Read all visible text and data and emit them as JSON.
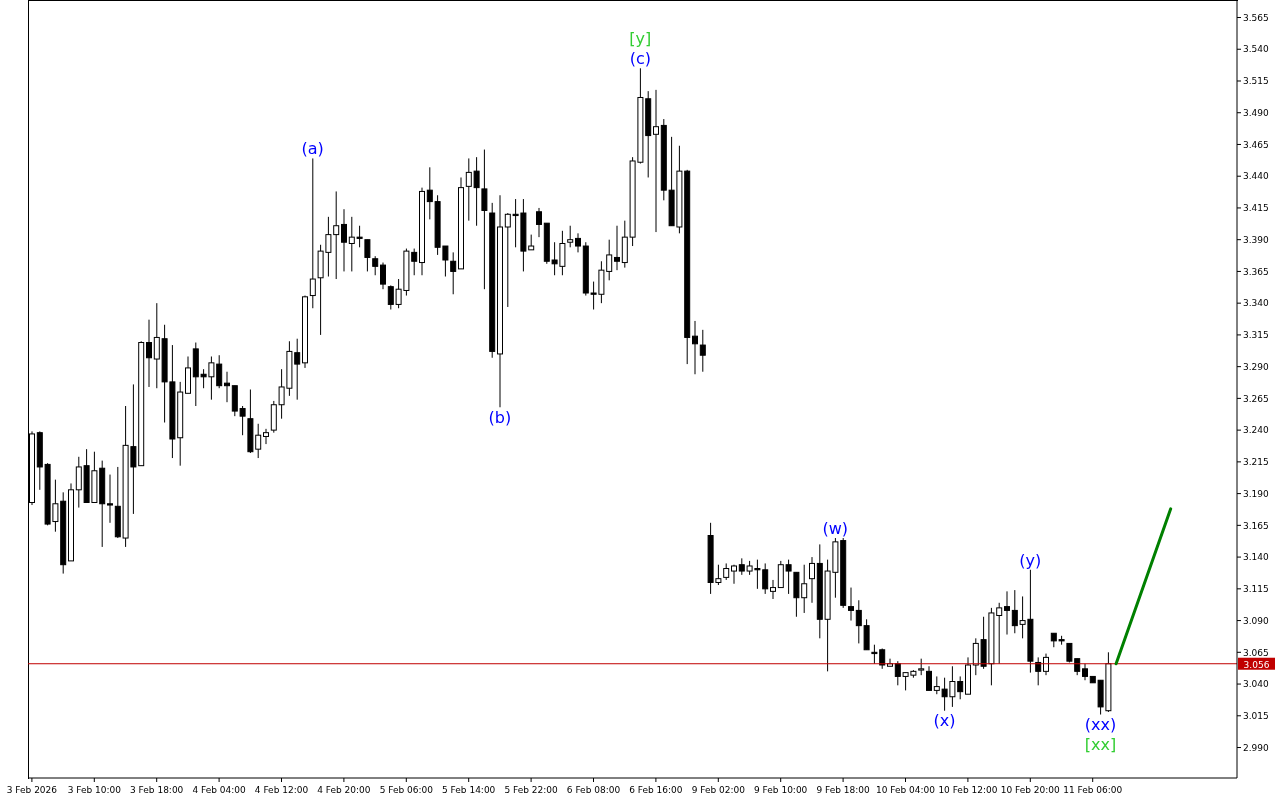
{
  "chart_data": {
    "type": "candlestick",
    "categories": [
      "3 Feb 2026",
      null,
      null,
      null,
      null,
      null,
      null,
      null,
      "3 Feb 10:00",
      null,
      null,
      null,
      null,
      null,
      null,
      null,
      "3 Feb 18:00",
      null,
      null,
      null,
      null,
      null,
      null,
      null,
      "4 Feb 04:00",
      null,
      null,
      null,
      null,
      null,
      null,
      null,
      "4 Feb 12:00",
      null,
      null,
      null,
      null,
      null,
      null,
      null,
      "4 Feb 20:00",
      null,
      null,
      null,
      null,
      null,
      null,
      null,
      "5 Feb 06:00",
      null,
      null,
      null,
      null,
      null,
      null,
      null,
      "5 Feb 14:00",
      null,
      null,
      null,
      null,
      null,
      null,
      null,
      "5 Feb 22:00",
      null,
      null,
      null,
      null,
      null,
      null,
      null,
      "6 Feb 08:00",
      null,
      null,
      null,
      null,
      null,
      null,
      null,
      "6 Feb 16:00",
      null,
      null,
      null,
      null,
      null,
      null,
      null,
      "9 Feb 02:00",
      null,
      null,
      null,
      null,
      null,
      null,
      null,
      "9 Feb 10:00",
      null,
      null,
      null,
      null,
      null,
      null,
      null,
      "9 Feb 18:00",
      null,
      null,
      null,
      null,
      null,
      null,
      null,
      "10 Feb 04:00",
      null,
      null,
      null,
      null,
      null,
      null,
      null,
      "10 Feb 12:00",
      null,
      null,
      null,
      null,
      null,
      null,
      null,
      "10 Feb 20:00",
      null,
      null,
      null,
      null,
      null,
      null,
      null,
      "11 Feb 06:00",
      null,
      null,
      null,
      null,
      null,
      null,
      null,
      null,
      null,
      null,
      null,
      null,
      null,
      null,
      null,
      null,
      null,
      null
    ],
    "ohlc": [
      [
        3.183,
        3.239,
        3.181,
        3.237
      ],
      [
        3.238,
        3.239,
        3.193,
        3.211
      ],
      [
        3.213,
        3.214,
        3.165,
        3.166
      ],
      [
        3.168,
        3.201,
        3.16,
        3.182
      ],
      [
        3.184,
        3.191,
        3.127,
        3.134
      ],
      [
        3.137,
        3.198,
        3.137,
        3.193
      ],
      [
        3.193,
        3.219,
        3.179,
        3.211
      ],
      [
        3.212,
        3.225,
        3.183,
        3.183
      ],
      [
        3.183,
        3.223,
        3.183,
        3.208
      ],
      [
        3.21,
        3.216,
        3.148,
        3.182
      ],
      [
        3.182,
        3.205,
        3.167,
        3.181
      ],
      [
        3.18,
        3.211,
        3.155,
        3.156
      ],
      [
        3.155,
        3.259,
        3.148,
        3.228
      ],
      [
        3.227,
        3.276,
        3.174,
        3.211
      ],
      [
        3.212,
        3.31,
        3.212,
        3.309
      ],
      [
        3.309,
        3.327,
        3.274,
        3.297
      ],
      [
        3.296,
        3.34,
        3.273,
        3.313
      ],
      [
        3.312,
        3.323,
        3.246,
        3.278
      ],
      [
        3.278,
        3.307,
        3.218,
        3.233
      ],
      [
        3.234,
        3.278,
        3.212,
        3.27
      ],
      [
        3.269,
        3.298,
        3.269,
        3.289
      ],
      [
        3.304,
        3.309,
        3.259,
        3.282
      ],
      [
        3.284,
        3.288,
        3.273,
        3.282
      ],
      [
        3.282,
        3.298,
        3.264,
        3.293
      ],
      [
        3.292,
        3.299,
        3.273,
        3.275
      ],
      [
        3.277,
        3.286,
        3.262,
        3.275
      ],
      [
        3.275,
        3.275,
        3.251,
        3.255
      ],
      [
        3.257,
        3.259,
        3.236,
        3.251
      ],
      [
        3.249,
        3.272,
        3.222,
        3.223
      ],
      [
        3.225,
        3.245,
        3.218,
        3.236
      ],
      [
        3.235,
        3.241,
        3.229,
        3.238
      ],
      [
        3.24,
        3.263,
        3.238,
        3.26
      ],
      [
        3.26,
        3.288,
        3.249,
        3.274
      ],
      [
        3.273,
        3.31,
        3.267,
        3.302
      ],
      [
        3.301,
        3.312,
        3.264,
        3.292
      ],
      [
        3.293,
        3.346,
        3.289,
        3.345
      ],
      [
        3.346,
        3.454,
        3.336,
        3.359
      ],
      [
        3.36,
        3.386,
        3.315,
        3.381
      ],
      [
        3.38,
        3.408,
        3.361,
        3.394
      ],
      [
        3.394,
        3.428,
        3.359,
        3.401
      ],
      [
        3.402,
        3.414,
        3.365,
        3.388
      ],
      [
        3.387,
        3.408,
        3.365,
        3.392
      ],
      [
        3.392,
        3.401,
        3.384,
        3.391
      ],
      [
        3.39,
        3.39,
        3.365,
        3.376
      ],
      [
        3.375,
        3.377,
        3.362,
        3.369
      ],
      [
        3.37,
        3.372,
        3.351,
        3.355
      ],
      [
        3.353,
        3.354,
        3.335,
        3.339
      ],
      [
        3.339,
        3.359,
        3.336,
        3.351
      ],
      [
        3.35,
        3.383,
        3.346,
        3.381
      ],
      [
        3.38,
        3.383,
        3.362,
        3.373
      ],
      [
        3.372,
        3.431,
        3.362,
        3.428
      ],
      [
        3.429,
        3.447,
        3.406,
        3.42
      ],
      [
        3.42,
        3.425,
        3.378,
        3.384
      ],
      [
        3.385,
        3.385,
        3.361,
        3.374
      ],
      [
        3.373,
        3.38,
        3.347,
        3.365
      ],
      [
        3.367,
        3.439,
        3.367,
        3.431
      ],
      [
        3.432,
        3.454,
        3.405,
        3.443
      ],
      [
        3.444,
        3.455,
        3.401,
        3.431
      ],
      [
        3.43,
        3.461,
        3.351,
        3.413
      ],
      [
        3.411,
        3.419,
        3.297,
        3.302
      ],
      [
        3.3,
        3.425,
        3.258,
        3.4
      ],
      [
        3.4,
        3.411,
        3.337,
        3.41
      ],
      [
        3.41,
        3.422,
        3.384,
        3.409
      ],
      [
        3.411,
        3.422,
        3.365,
        3.381
      ],
      [
        3.382,
        3.394,
        3.382,
        3.385
      ],
      [
        3.412,
        3.415,
        3.392,
        3.402
      ],
      [
        3.403,
        3.403,
        3.371,
        3.373
      ],
      [
        3.374,
        3.388,
        3.362,
        3.371
      ],
      [
        3.369,
        3.397,
        3.362,
        3.387
      ],
      [
        3.388,
        3.401,
        3.384,
        3.39
      ],
      [
        3.391,
        3.395,
        3.38,
        3.385
      ],
      [
        3.385,
        3.388,
        3.346,
        3.348
      ],
      [
        3.348,
        3.357,
        3.335,
        3.347
      ],
      [
        3.347,
        3.373,
        3.34,
        3.366
      ],
      [
        3.365,
        3.39,
        3.358,
        3.378
      ],
      [
        3.376,
        3.401,
        3.366,
        3.373
      ],
      [
        3.372,
        3.405,
        3.368,
        3.392
      ],
      [
        3.392,
        3.455,
        3.385,
        3.452
      ],
      [
        3.451,
        3.525,
        3.45,
        3.502
      ],
      [
        3.501,
        3.507,
        3.439,
        3.472
      ],
      [
        3.473,
        3.508,
        3.396,
        3.479
      ],
      [
        3.48,
        3.485,
        3.421,
        3.429
      ],
      [
        3.429,
        3.471,
        3.401,
        3.401
      ],
      [
        3.4,
        3.464,
        3.395,
        3.444
      ],
      [
        3.444,
        3.445,
        3.292,
        3.313
      ],
      [
        3.314,
        3.326,
        3.284,
        3.308
      ],
      [
        3.307,
        3.319,
        3.286,
        3.299
      ],
      [
        3.157,
        3.167,
        3.111,
        3.12
      ],
      [
        3.12,
        3.134,
        3.118,
        3.123
      ],
      [
        3.124,
        3.135,
        3.122,
        3.131
      ],
      [
        3.129,
        3.134,
        3.119,
        3.133
      ],
      [
        3.134,
        3.139,
        3.126,
        3.129
      ],
      [
        3.129,
        3.137,
        3.126,
        3.133
      ],
      [
        3.131,
        3.138,
        3.115,
        3.13
      ],
      [
        3.13,
        3.135,
        3.111,
        3.115
      ],
      [
        3.113,
        3.122,
        3.107,
        3.116
      ],
      [
        3.116,
        3.137,
        3.116,
        3.134
      ],
      [
        3.134,
        3.138,
        3.111,
        3.129
      ],
      [
        3.128,
        3.128,
        3.093,
        3.108
      ],
      [
        3.108,
        3.134,
        3.096,
        3.119
      ],
      [
        3.123,
        3.14,
        3.104,
        3.135
      ],
      [
        3.135,
        3.15,
        3.076,
        3.091
      ],
      [
        3.091,
        3.138,
        3.05,
        3.129
      ],
      [
        3.128,
        3.155,
        3.108,
        3.152
      ],
      [
        3.153,
        3.155,
        3.1,
        3.102
      ],
      [
        3.101,
        3.116,
        3.09,
        3.098
      ],
      [
        3.098,
        3.106,
        3.072,
        3.086
      ],
      [
        3.086,
        3.091,
        3.067,
        3.067
      ],
      [
        3.065,
        3.071,
        3.056,
        3.064
      ],
      [
        3.067,
        3.068,
        3.052,
        3.055
      ],
      [
        3.054,
        3.06,
        3.054,
        3.056
      ],
      [
        3.056,
        3.058,
        3.039,
        3.046
      ],
      [
        3.046,
        3.049,
        3.035,
        3.049
      ],
      [
        3.047,
        3.051,
        3.045,
        3.05
      ],
      [
        3.051,
        3.06,
        3.047,
        3.052
      ],
      [
        3.05,
        3.054,
        3.035,
        3.035
      ],
      [
        3.035,
        3.046,
        3.032,
        3.038
      ],
      [
        3.036,
        3.045,
        3.019,
        3.03
      ],
      [
        3.03,
        3.054,
        3.022,
        3.042
      ],
      [
        3.042,
        3.046,
        3.028,
        3.034
      ],
      [
        3.032,
        3.061,
        3.032,
        3.055
      ],
      [
        3.055,
        3.076,
        3.047,
        3.072
      ],
      [
        3.075,
        3.093,
        3.052,
        3.054
      ],
      [
        3.056,
        3.1,
        3.039,
        3.096
      ],
      [
        3.094,
        3.104,
        3.056,
        3.1
      ],
      [
        3.101,
        3.113,
        3.079,
        3.098
      ],
      [
        3.098,
        3.114,
        3.08,
        3.086
      ],
      [
        3.087,
        3.109,
        3.076,
        3.09
      ],
      [
        3.091,
        3.13,
        3.049,
        3.058
      ],
      [
        3.057,
        3.061,
        3.039,
        3.05
      ],
      [
        3.05,
        3.064,
        3.047,
        3.061
      ],
      [
        3.08,
        3.08,
        3.069,
        3.074
      ],
      [
        3.075,
        3.078,
        3.071,
        3.074
      ],
      [
        3.072,
        3.072,
        3.057,
        3.058
      ],
      [
        3.06,
        3.06,
        3.047,
        3.05
      ],
      [
        3.052,
        3.056,
        3.043,
        3.046
      ],
      [
        3.046,
        3.046,
        3.041,
        3.041
      ],
      [
        3.043,
        3.043,
        3.016,
        3.022
      ],
      [
        3.019,
        3.065,
        3.018,
        3.056
      ],
      null,
      null,
      null,
      null,
      null,
      null,
      null,
      null,
      null,
      null,
      null,
      null,
      null,
      null,
      null,
      null
    ],
    "series": [
      {
        "type": "line",
        "color": "#008000",
        "values": [
          null,
          null,
          null,
          null,
          null,
          null,
          null,
          null,
          null,
          null,
          null,
          null,
          null,
          null,
          null,
          null,
          null,
          null,
          null,
          null,
          null,
          null,
          null,
          null,
          null,
          null,
          null,
          null,
          null,
          null,
          null,
          null,
          null,
          null,
          null,
          null,
          null,
          null,
          null,
          null,
          null,
          null,
          null,
          null,
          null,
          null,
          null,
          null,
          null,
          null,
          null,
          null,
          null,
          null,
          null,
          null,
          null,
          null,
          null,
          null,
          null,
          null,
          null,
          null,
          null,
          null,
          null,
          null,
          null,
          null,
          null,
          null,
          null,
          null,
          null,
          null,
          null,
          null,
          null,
          null,
          null,
          null,
          null,
          null,
          null,
          null,
          null,
          null,
          null,
          null,
          null,
          null,
          null,
          null,
          null,
          null,
          null,
          null,
          null,
          null,
          null,
          null,
          null,
          null,
          null,
          null,
          null,
          null,
          null,
          null,
          null,
          null,
          null,
          null,
          null,
          null,
          null,
          null,
          null,
          null,
          null,
          null,
          null,
          null,
          null,
          null,
          null,
          null,
          null,
          null,
          null,
          null,
          null,
          null,
          null,
          null,
          null,
          null,
          null,
          3.056,
          null,
          null,
          null,
          null,
          null,
          null,
          3.178,
          null,
          null,
          null,
          null,
          null,
          null,
          null,
          null
        ]
      }
    ],
    "ylim": [
      2.966,
      3.578
    ],
    "yticks": [
      3.565,
      {
        "value": 3.54,
        "label": "3.540"
      },
      3.515,
      {
        "value": 3.49,
        "label": "3.490"
      },
      3.465,
      {
        "value": 3.44,
        "label": "3.440"
      },
      3.415,
      {
        "value": 3.39,
        "label": "3.390"
      },
      3.365,
      {
        "value": 3.34,
        "label": "3.340"
      },
      3.315,
      {
        "value": 3.29,
        "label": "3.290"
      },
      3.265,
      {
        "value": 3.24,
        "label": "3.240"
      },
      3.215,
      {
        "value": 3.19,
        "label": "3.190"
      },
      3.165,
      {
        "value": 3.14,
        "label": "3.140"
      },
      3.115,
      {
        "value": 3.09,
        "label": "3.090"
      },
      3.065,
      {
        "value": 3.04,
        "label": "3.040"
      },
      3.015,
      {
        "value": 2.99,
        "label": "2.990"
      }
    ],
    "ref_lines": [
      {
        "axis": "y",
        "value": 3.056,
        "label": "3.056",
        "color": "#c00000"
      }
    ],
    "annotations": [
      {
        "text": "(a)",
        "y": 3.454
      },
      {
        "text": "(b)",
        "y": 3.258
      },
      {
        "text": "(c)",
        "y": 3.525
      },
      {
        "text": "[y]",
        "y": 3.525
      },
      {
        "text": "(w)",
        "y": 3.155
      },
      {
        "text": "(x)",
        "y": 3.019
      },
      {
        "text": "(y)",
        "y": 3.13
      },
      {
        "text": "(xx)",
        "y": 3.016
      },
      {
        "text": "[xx]",
        "y": 3.016
      }
    ],
    "grid": false
  }
}
